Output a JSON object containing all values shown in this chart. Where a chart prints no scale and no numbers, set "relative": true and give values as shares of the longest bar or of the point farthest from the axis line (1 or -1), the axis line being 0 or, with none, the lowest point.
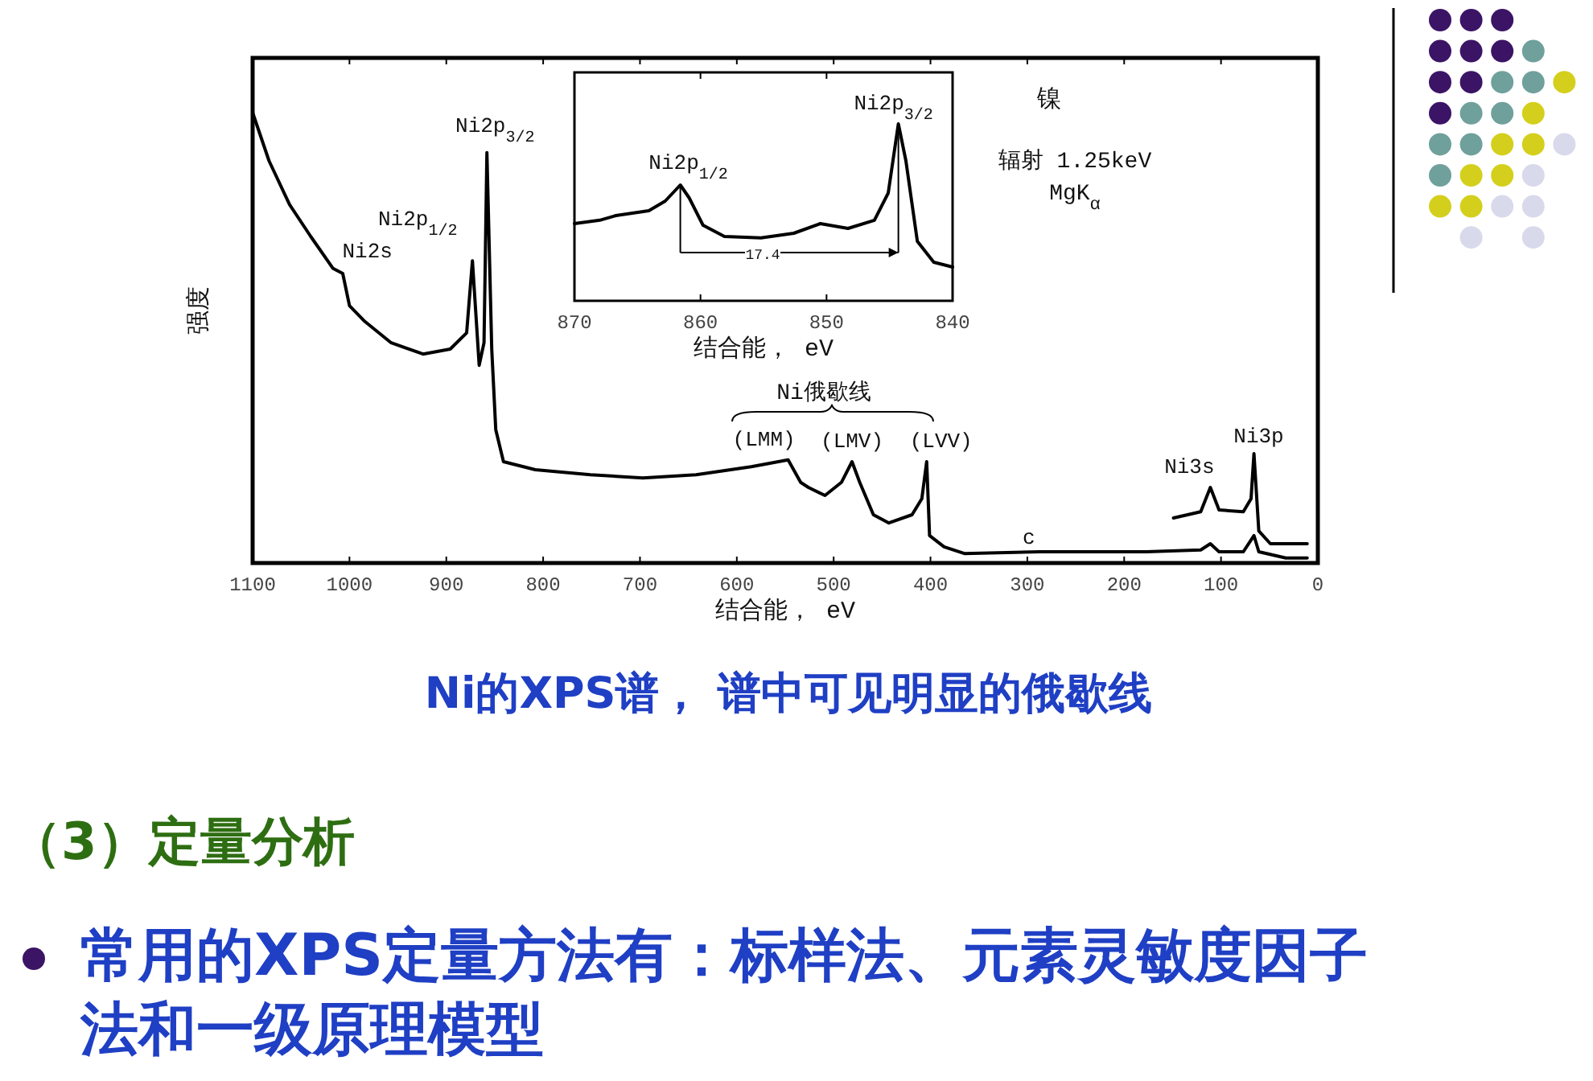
{
  "chart_data": [
    {
      "type": "line",
      "title": "Ni的XPS谱， 谱中可见明显的俄歇线",
      "xlabel": "结合能， eV",
      "ylabel": "强度",
      "relative": true,
      "xlim": [
        1100,
        0
      ],
      "xticks": [
        1100,
        1000,
        900,
        800,
        700,
        600,
        500,
        400,
        300,
        200,
        100,
        0
      ],
      "series": [
        {
          "color": "#000000",
          "x": [
            1100,
            1083,
            1062,
            1040,
            1017,
            1007,
            1000,
            984,
            957,
            924,
            896,
            879,
            873,
            866,
            861,
            858,
            853,
            849,
            841,
            808,
            751,
            697,
            642,
            585,
            547,
            534,
            526,
            509,
            492,
            481,
            473,
            459,
            443,
            419,
            409,
            404,
            401,
            386,
            365,
            287,
            177,
            121,
            111,
            102,
            77,
            66,
            61,
            33,
            11
          ],
          "values": [
            1.0,
            0.893,
            0.796,
            0.725,
            0.654,
            0.643,
            0.571,
            0.536,
            0.489,
            0.464,
            0.475,
            0.511,
            0.671,
            0.439,
            0.489,
            0.911,
            0.475,
            0.296,
            0.225,
            0.207,
            0.196,
            0.189,
            0.196,
            0.214,
            0.229,
            0.179,
            0.168,
            0.15,
            0.179,
            0.225,
            0.179,
            0.107,
            0.089,
            0.107,
            0.143,
            0.225,
            0.061,
            0.036,
            0.021,
            0.025,
            0.025,
            0.029,
            0.043,
            0.025,
            0.025,
            0.061,
            0.025,
            0.011,
            0.011
          ]
        },
        {
          "color": "#000000",
          "x": [
            149,
            121,
            111,
            102,
            77,
            69,
            66,
            61,
            49,
            11
          ],
          "values": [
            0.1,
            0.114,
            0.168,
            0.118,
            0.114,
            0.143,
            0.243,
            0.071,
            0.043,
            0.043
          ]
        }
      ],
      "annotations": [
        {
          "text": "Ni2s",
          "x": 1008,
          "y": 0.643
        },
        {
          "text": "Ni2p$_{1/2}$",
          "x": 873,
          "y": 0.671
        },
        {
          "text": "Ni2p$_{3/2}$",
          "x": 858,
          "y": 0.911
        },
        "Ni俄歇线",
        {
          "text": "(LMM)",
          "x": 547,
          "y": 0.229
        },
        {
          "text": "(LMV)",
          "x": 481,
          "y": 0.225
        },
        {
          "text": "(LVV)",
          "x": 404,
          "y": 0.225
        },
        {
          "text": "Ni3s",
          "x": 111,
          "y": 0.168
        },
        {
          "text": "Ni3p",
          "x": 66,
          "y": 0.243
        },
        {
          "text": "c",
          "x": 300,
          "y": 0.025
        },
        "镍",
        "辐射 1.25keV",
        "MgK$_{α}$"
      ]
    },
    {
      "type": "line",
      "xlabel": "结合能， eV",
      "relative": true,
      "xlim": [
        870,
        840
      ],
      "xticks": [
        870,
        860,
        850,
        840
      ],
      "series": [
        {
          "color": "#000000",
          "x": [
            870,
            868,
            866.7,
            864.1,
            862.8,
            861.6,
            860.9,
            859.8,
            858.1,
            855.2,
            852.6,
            850.5,
            848.3,
            846.2,
            845.1,
            844.3,
            843.7,
            842.8,
            841.5,
            840
          ],
          "values": [
            0.436,
            0.455,
            0.482,
            0.509,
            0.564,
            0.655,
            0.582,
            0.427,
            0.364,
            0.355,
            0.382,
            0.436,
            0.409,
            0.455,
            0.609,
            1.0,
            0.791,
            0.336,
            0.218,
            0.191
          ]
        }
      ],
      "annotations": [
        {
          "text": "Ni2p$_{1/2}$",
          "x": 861.6,
          "y": 0.655
        },
        {
          "text": "Ni2p$_{3/2}$",
          "x": 844.3,
          "y": 1.0
        },
        "17.4"
      ]
    },
    {
      "type": "other",
      "annotations": [
        "（3）定量分析",
        "常用的XPS定量方法有：标样法、元素灵敏度因子法和一级原理模型"
      ]
    }
  ]
}
